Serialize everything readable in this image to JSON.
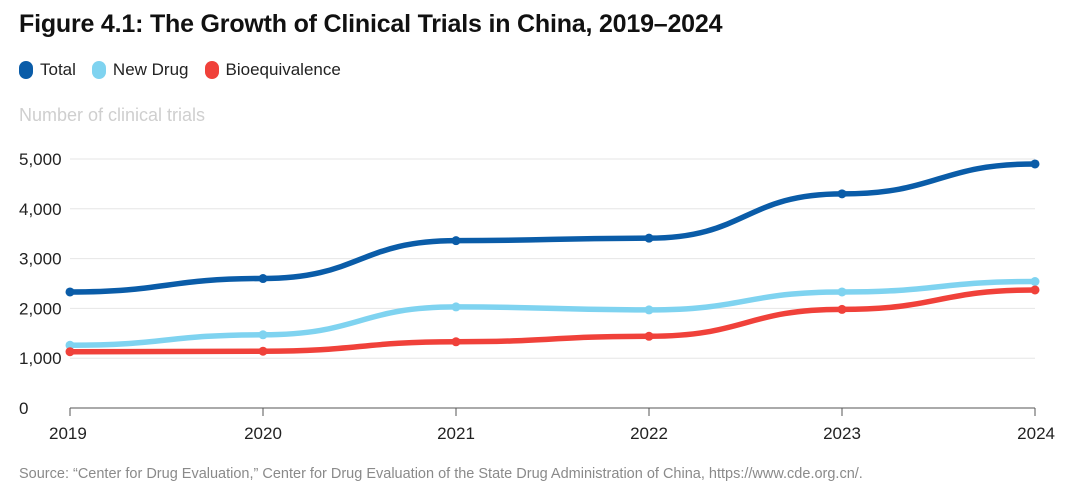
{
  "chart_data": {
    "type": "line",
    "title": "Figure 4.1: The Growth of Clinical Trials in China, 2019–2024",
    "ylabel": "Number of clinical trials",
    "xlabel": "",
    "x": [
      "2019",
      "2020",
      "2021",
      "2022",
      "2023",
      "2024"
    ],
    "ylim": [
      0,
      5000
    ],
    "yticks": [
      0,
      1000,
      2000,
      3000,
      4000,
      5000
    ],
    "ytick_labels": [
      "0",
      "1,000",
      "2,000",
      "3,000",
      "4,000",
      "5,000"
    ],
    "grid": true,
    "legend_position": "top-left",
    "series": [
      {
        "name": "Total",
        "color": "#0a5ca8",
        "values": [
          2330,
          2600,
          3360,
          3410,
          4300,
          4900
        ]
      },
      {
        "name": "New Drug",
        "color": "#7fd3f0",
        "values": [
          1260,
          1470,
          2030,
          1970,
          2330,
          2540
        ]
      },
      {
        "name": "Bioequivalence",
        "color": "#f0413a",
        "values": [
          1130,
          1140,
          1330,
          1440,
          1980,
          2370
        ]
      }
    ],
    "source": "Source: “Center for Drug Evaluation,” Center for Drug Evaluation of the State Drug Administration of China, https://www.cde.org.cn/."
  }
}
